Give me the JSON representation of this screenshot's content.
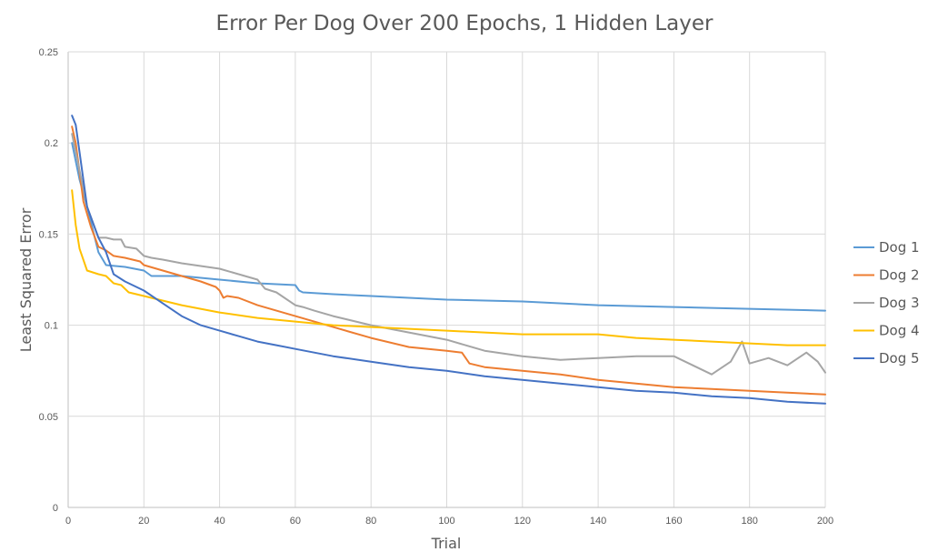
{
  "chart_data": {
    "type": "line",
    "title": "Error Per Dog Over 200 Epochs, 1 Hidden Layer",
    "xlabel": "Trial",
    "ylabel": "Least Squared Error",
    "xlim": [
      0,
      200
    ],
    "ylim": [
      0,
      0.25
    ],
    "x_ticks": [
      "0",
      "20",
      "40",
      "60",
      "80",
      "100",
      "120",
      "140",
      "160",
      "180",
      "200"
    ],
    "y_ticks": [
      "0",
      "0.05",
      "0.1",
      "0.15",
      "0.2",
      "0.25"
    ],
    "grid": true,
    "legend_position": "right",
    "series": [
      {
        "name": "Dog 1",
        "color": "#5b9bd5",
        "x": [
          1,
          3,
          5,
          8,
          10,
          15,
          20,
          22,
          25,
          30,
          40,
          50,
          60,
          61,
          62,
          70,
          80,
          100,
          120,
          140,
          160,
          180,
          200
        ],
        "values": [
          0.2,
          0.18,
          0.165,
          0.14,
          0.133,
          0.132,
          0.13,
          0.127,
          0.127,
          0.127,
          0.125,
          0.123,
          0.122,
          0.119,
          0.118,
          0.117,
          0.116,
          0.114,
          0.113,
          0.111,
          0.11,
          0.109,
          0.108
        ]
      },
      {
        "name": "Dog 2",
        "color": "#ed7d31",
        "x": [
          1,
          2,
          4,
          6,
          8,
          10,
          12,
          15,
          19,
          20,
          25,
          30,
          35,
          39,
          40,
          41,
          42,
          45,
          50,
          60,
          70,
          80,
          90,
          100,
          104,
          106,
          110,
          120,
          130,
          140,
          150,
          160,
          170,
          180,
          190,
          200
        ],
        "values": [
          0.209,
          0.2,
          0.168,
          0.154,
          0.143,
          0.141,
          0.138,
          0.137,
          0.135,
          0.133,
          0.13,
          0.127,
          0.124,
          0.121,
          0.119,
          0.115,
          0.116,
          0.115,
          0.111,
          0.105,
          0.099,
          0.093,
          0.088,
          0.086,
          0.085,
          0.079,
          0.077,
          0.075,
          0.073,
          0.07,
          0.068,
          0.066,
          0.065,
          0.064,
          0.063,
          0.062
        ]
      },
      {
        "name": "Dog 3",
        "color": "#a5a5a5",
        "x": [
          1,
          3,
          5,
          8,
          10,
          12,
          14,
          15,
          18,
          20,
          22,
          25,
          30,
          40,
          50,
          52,
          55,
          60,
          62,
          65,
          70,
          80,
          90,
          100,
          110,
          120,
          130,
          140,
          150,
          160,
          165,
          170,
          175,
          178,
          180,
          185,
          190,
          195,
          198,
          200
        ],
        "values": [
          0.205,
          0.185,
          0.165,
          0.148,
          0.148,
          0.147,
          0.147,
          0.143,
          0.142,
          0.138,
          0.137,
          0.136,
          0.134,
          0.131,
          0.125,
          0.12,
          0.118,
          0.111,
          0.11,
          0.108,
          0.105,
          0.1,
          0.096,
          0.092,
          0.086,
          0.083,
          0.081,
          0.082,
          0.083,
          0.083,
          0.078,
          0.073,
          0.08,
          0.091,
          0.079,
          0.082,
          0.078,
          0.085,
          0.08,
          0.074
        ]
      },
      {
        "name": "Dog 4",
        "color": "#ffc000",
        "x": [
          1,
          2,
          3,
          5,
          8,
          10,
          12,
          14,
          16,
          20,
          30,
          40,
          50,
          60,
          70,
          80,
          90,
          100,
          110,
          120,
          130,
          140,
          150,
          160,
          170,
          180,
          190,
          200
        ],
        "values": [
          0.174,
          0.155,
          0.142,
          0.13,
          0.128,
          0.127,
          0.123,
          0.122,
          0.118,
          0.116,
          0.111,
          0.107,
          0.104,
          0.102,
          0.1,
          0.099,
          0.098,
          0.097,
          0.096,
          0.095,
          0.095,
          0.095,
          0.093,
          0.092,
          0.091,
          0.09,
          0.089,
          0.089
        ]
      },
      {
        "name": "Dog 5",
        "color": "#4472c4",
        "x": [
          1,
          2,
          3,
          5,
          8,
          10,
          12,
          15,
          20,
          25,
          30,
          35,
          40,
          45,
          50,
          55,
          60,
          65,
          70,
          80,
          90,
          100,
          110,
          120,
          130,
          140,
          150,
          160,
          170,
          180,
          190,
          200
        ],
        "values": [
          0.215,
          0.21,
          0.195,
          0.165,
          0.148,
          0.14,
          0.128,
          0.124,
          0.119,
          0.112,
          0.105,
          0.1,
          0.097,
          0.094,
          0.091,
          0.089,
          0.087,
          0.085,
          0.083,
          0.08,
          0.077,
          0.075,
          0.072,
          0.07,
          0.068,
          0.066,
          0.064,
          0.063,
          0.061,
          0.06,
          0.058,
          0.057
        ]
      }
    ]
  }
}
